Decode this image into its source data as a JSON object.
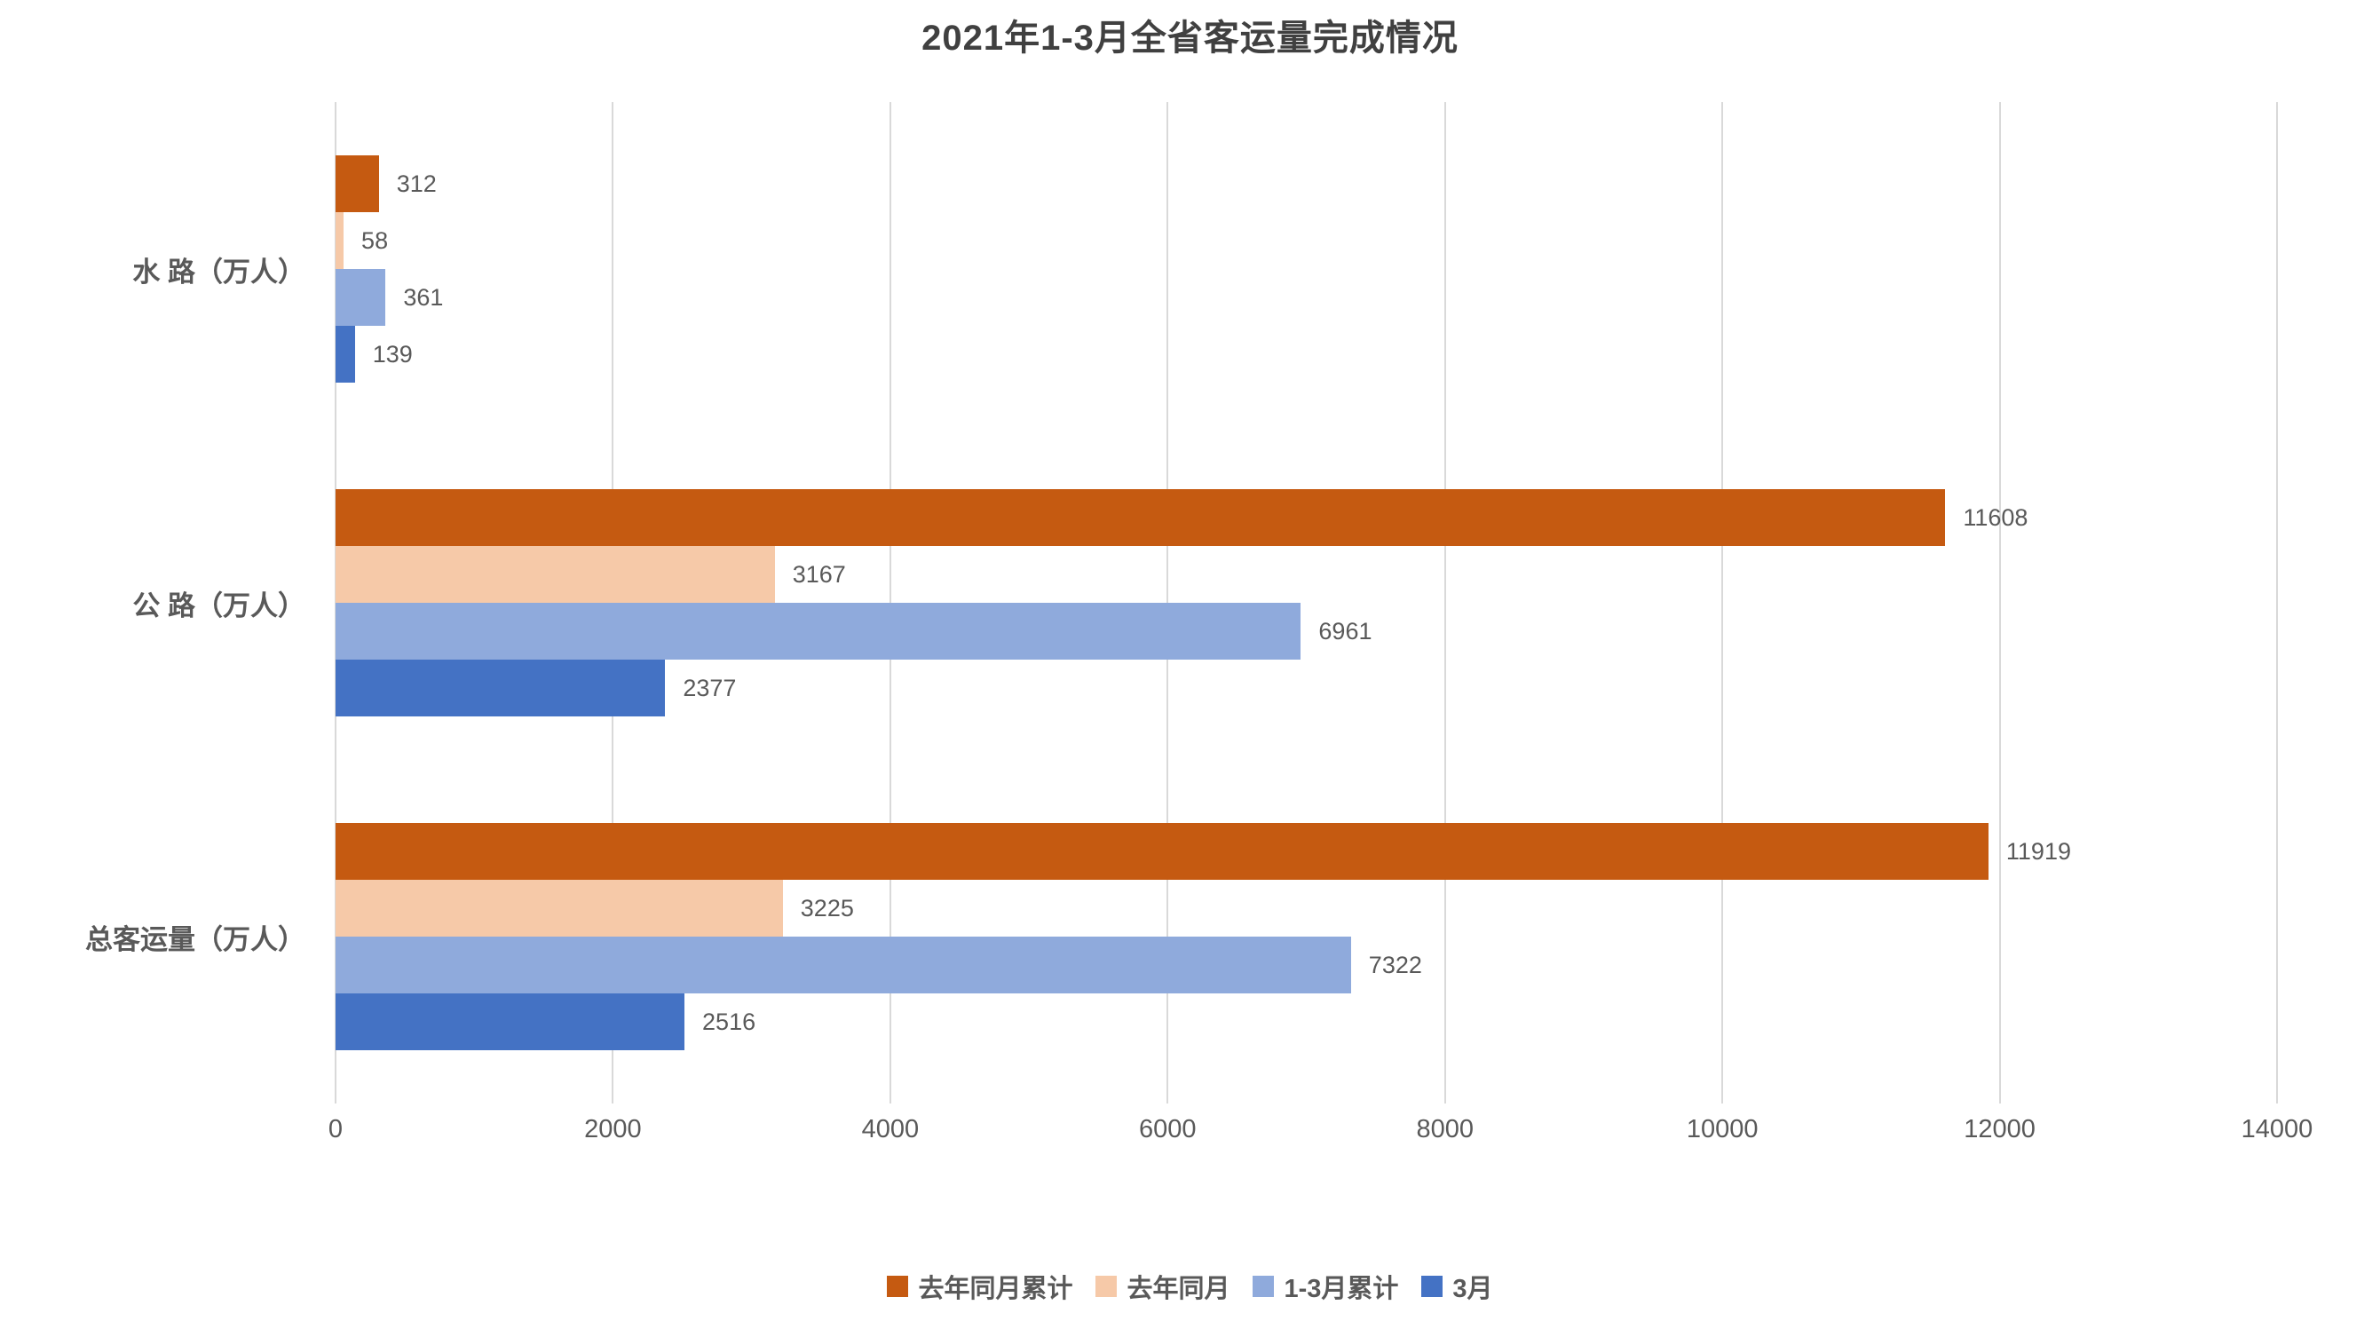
{
  "title": "2021年1-3月全省客运量完成情况",
  "chart_data": {
    "type": "bar",
    "orientation": "horizontal",
    "title": "2021年1-3月全省客运量完成情况",
    "categories": [
      "水 路（万人）",
      "公 路（万人）",
      "总客运量（万人）"
    ],
    "series": [
      {
        "name": "去年同月累计",
        "color": "#c55a11",
        "values": [
          312,
          11608,
          11919
        ]
      },
      {
        "name": "去年同月",
        "color": "#f6c9a8",
        "values": [
          58,
          3167,
          3225
        ]
      },
      {
        "name": "1-3月累计",
        "color": "#8faadc",
        "values": [
          361,
          6961,
          7322
        ]
      },
      {
        "name": "3月",
        "color": "#4472c4",
        "values": [
          139,
          2377,
          2516
        ]
      }
    ],
    "xlim": [
      0,
      14000
    ],
    "x_ticks": [
      0,
      2000,
      4000,
      6000,
      8000,
      10000,
      12000,
      14000
    ],
    "grid": true,
    "gridline_color": "#d9d9d9",
    "legend_position": "bottom",
    "value_labels_shown": true,
    "text_color": "#595959",
    "title_color": "#404040"
  }
}
